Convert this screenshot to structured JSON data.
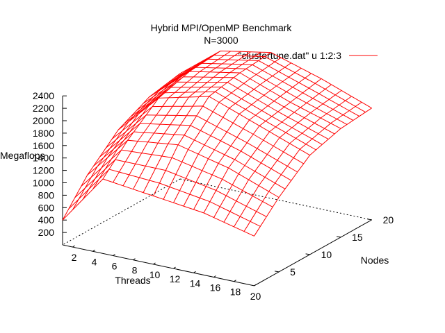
{
  "chart_data": {
    "type": "surface3d",
    "title": "Hybrid MPI/OpenMP Benchmark",
    "subtitle": "N=3000",
    "legend": {
      "entry": "\"clustertune.dat\" u 1:2:3",
      "placement": "top-right"
    },
    "xlabel": "Threads",
    "ylabel": "Nodes",
    "zlabel": "Megaflops",
    "x_ticks": [
      "2",
      "4",
      "6",
      "8",
      "10",
      "12",
      "14",
      "16",
      "18",
      "20"
    ],
    "y_ticks": [
      "5",
      "10",
      "15",
      "20"
    ],
    "z_ticks": [
      "200",
      "400",
      "600",
      "800",
      "1000",
      "1200",
      "1400",
      "1600",
      "1800",
      "2000",
      "2200",
      "2400"
    ],
    "x_range": [
      1,
      20
    ],
    "y_range": [
      1,
      20
    ],
    "z_range": [
      0,
      2400
    ],
    "grid": false,
    "line_color": "#ff0000",
    "surface_sample": {
      "x": [
        1,
        5,
        10,
        15,
        20
      ],
      "y": [
        1,
        5,
        10,
        15,
        20
      ],
      "z_rows_by_x": [
        [
          400,
          900,
          1350,
          1600,
          1700
        ],
        [
          1200,
          1600,
          2000,
          2150,
          2200
        ],
        [
          1100,
          1700,
          2200,
          2300,
          2350
        ],
        [
          1000,
          1500,
          1900,
          2000,
          2100
        ],
        [
          800,
          1200,
          1600,
          1750,
          1800
        ]
      ]
    }
  }
}
